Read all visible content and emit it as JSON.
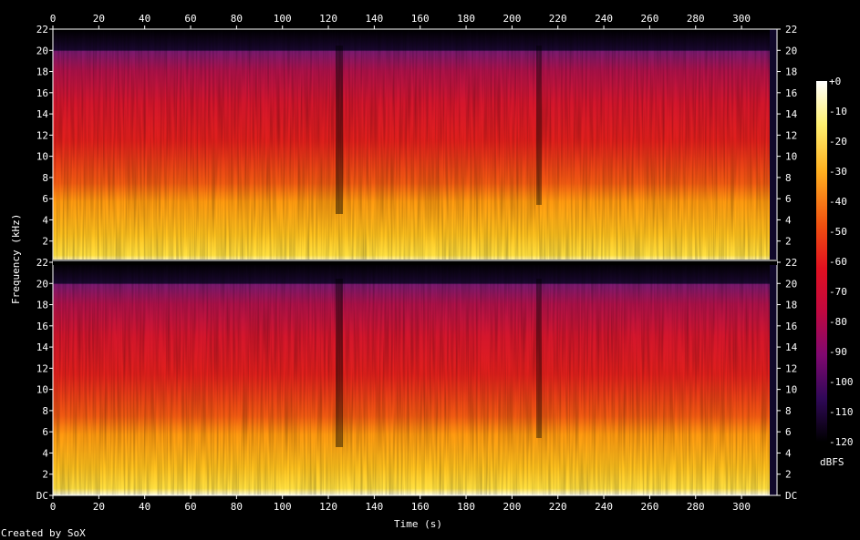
{
  "chart_data": {
    "type": "heatmap",
    "title": "",
    "xlabel": "Time (s)",
    "ylabel": "Frequency (kHz)",
    "footer": "Created by SoX",
    "colorbar_label": "dBFS",
    "xlim": [
      0,
      316
    ],
    "ylim": [
      0,
      22
    ],
    "x_ticks": [
      "0",
      "20",
      "40",
      "60",
      "80",
      "100",
      "120",
      "140",
      "160",
      "180",
      "200",
      "220",
      "240",
      "260",
      "280",
      "300"
    ],
    "y_ticks": [
      "DC",
      "2",
      "4",
      "6",
      "8",
      "10",
      "12",
      "14",
      "16",
      "18",
      "20",
      "22"
    ],
    "colorbar_ticks": [
      "+0",
      "-10",
      "-20",
      "-30",
      "-40",
      "-50",
      "-60",
      "-70",
      "-80",
      "-90",
      "-100",
      "-110",
      "-120"
    ],
    "colorbar_range": [
      -120,
      0
    ],
    "channels": 2,
    "spectral_cutoff_khz": 20,
    "audio_end_s": 312,
    "dropouts_s": [
      124,
      210
    ],
    "colors": {
      "background": "#000000",
      "text": "#ffffff",
      "grid": "#ffffff"
    }
  }
}
